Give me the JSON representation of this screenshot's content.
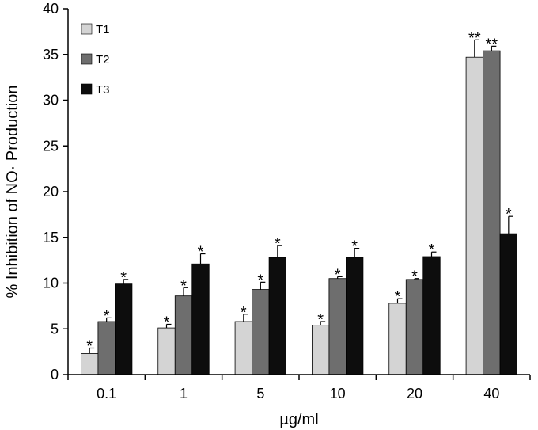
{
  "chart_data": {
    "type": "bar",
    "title": "",
    "xlabel": "µg/ml",
    "ylabel": "% Inhibition of NO· Production",
    "ylim": [
      0,
      40
    ],
    "yticks": [
      0,
      5,
      10,
      15,
      20,
      25,
      30,
      35,
      40
    ],
    "categories": [
      "0.1",
      "1",
      "5",
      "10",
      "20",
      "40"
    ],
    "series": [
      {
        "name": "T1",
        "color": "#d4d4d4",
        "values": [
          2.3,
          5.1,
          5.8,
          5.4,
          7.8,
          34.7
        ],
        "errors": [
          0.6,
          0.4,
          0.8,
          0.4,
          0.5,
          1.9
        ],
        "significance": [
          "*",
          "*",
          "*",
          "*",
          "*",
          "**"
        ]
      },
      {
        "name": "T2",
        "color": "#6e6e6e",
        "values": [
          5.8,
          8.6,
          9.3,
          10.5,
          10.4,
          35.4
        ],
        "errors": [
          0.4,
          0.9,
          0.8,
          0.2,
          0.1,
          0.5
        ],
        "significance": [
          "*",
          "*",
          "*",
          "*",
          "*",
          "**"
        ]
      },
      {
        "name": "T3",
        "color": "#0d0d0d",
        "values": [
          9.9,
          12.1,
          12.8,
          12.8,
          12.9,
          15.4
        ],
        "errors": [
          0.5,
          1.1,
          1.3,
          1.0,
          0.5,
          1.9
        ],
        "significance": [
          "*",
          "*",
          "*",
          "*",
          "*",
          "*"
        ]
      }
    ],
    "grid": false,
    "legend_position": "top-left"
  }
}
